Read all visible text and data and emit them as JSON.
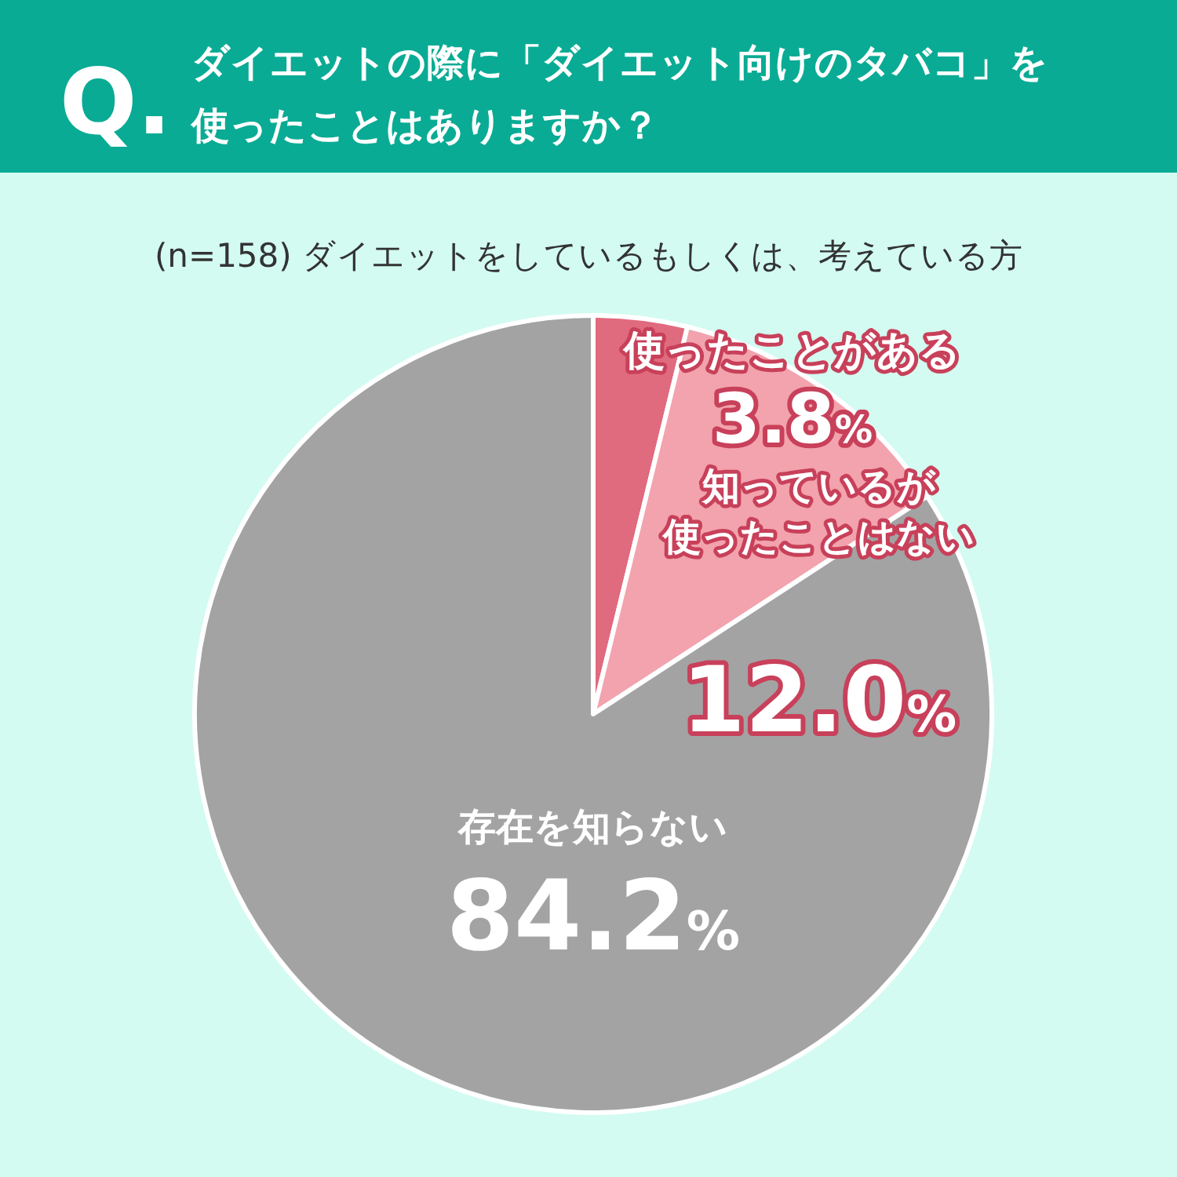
{
  "chart_data": {
    "type": "pie",
    "title": "ダイエットの際に「ダイエット向けのタバコ」を使ったことはありますか？",
    "subtitle": "(n=158) ダイエットをしているもしくは、考えている方",
    "annotations": [
      "Q."
    ],
    "categories": [
      "使ったことがある",
      "知っているが使ったことはない",
      "存在を知らない"
    ],
    "values": [
      3.8,
      12.0,
      84.2
    ],
    "value_labels": [
      "3.8%",
      "12.0%",
      "84.2%"
    ],
    "colors": [
      "#e06a7e",
      "#f2a3ad",
      "#a3a3a3"
    ]
  }
}
